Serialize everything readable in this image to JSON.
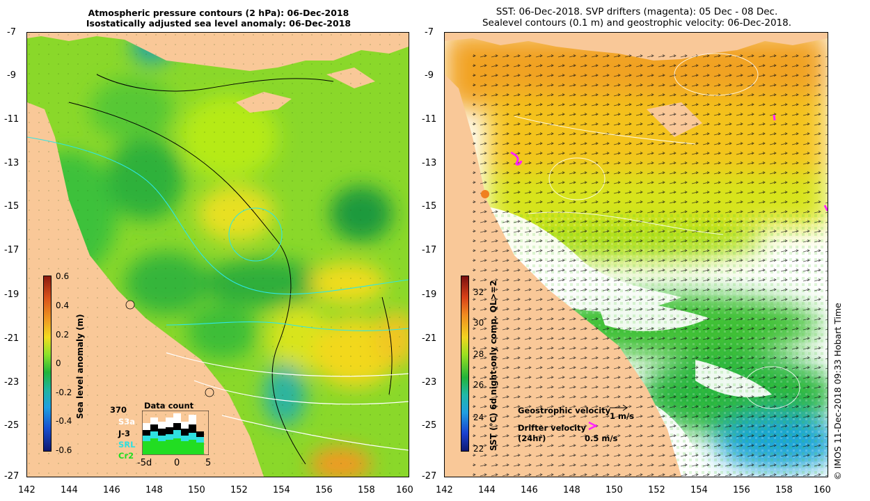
{
  "left_panel": {
    "title_line1": "Atmospheric pressure contours (2 hPa): 06-Dec-2018",
    "title_line2": "Isostatically adjusted sea level anomaly: 06-Dec-2018",
    "colorbar_label": "Sea level anomaly (m)",
    "colorbar_ticks": [
      "0.6",
      "0.4",
      "0.2",
      "0",
      "-0.2",
      "-0.4",
      "-0.6"
    ],
    "data_count": {
      "title": "Data count",
      "max_value": "370",
      "legend": [
        {
          "name": "S3a",
          "color": "#ffffff"
        },
        {
          "name": "J-3",
          "color": "#000000"
        },
        {
          "name": "SRL",
          "color": "#2fe0e0"
        },
        {
          "name": "Cr2",
          "color": "#22dd22"
        }
      ],
      "x_labels": [
        "-5d",
        "0",
        "5"
      ]
    }
  },
  "right_panel": {
    "title_line1": "SST: 06-Dec-2018. SVP drifters (magenta): 05 Dec - 08 Dec.",
    "title_line2": "Sealevel contours (0.1 m) and geostrophic velocity: 06-Dec-2018.",
    "colorbar_label": "SST (°C) 6d night-only comp. QL>=2",
    "colorbar_ticks": [
      "32",
      "30",
      "28",
      "26",
      "24",
      "22"
    ],
    "geostrophic_velocity_label": "Geostrophic velocity",
    "geostrophic_velocity_scale": "1 m/s",
    "drifter_velocity_label": "Drifter velocity",
    "drifter_velocity_sub": "(24hr)",
    "drifter_velocity_scale": "0.5 m/s",
    "side_credit": "© IMOS 11-Dec-2018 09:33 Hobart Time"
  },
  "axes": {
    "y_ticks": [
      "-7",
      "-9",
      "-11",
      "-13",
      "-15",
      "-17",
      "-19",
      "-21",
      "-23",
      "-25",
      "-27"
    ],
    "x_ticks": [
      "142",
      "144",
      "146",
      "148",
      "150",
      "152",
      "154",
      "156",
      "158",
      "160"
    ]
  },
  "colors": {
    "land": "#f9c898",
    "sla_mid": "#9ee41c",
    "sla_low": "#2ebd3a",
    "sst_warm": "#f2a020",
    "sst_mid": "#f6d01e"
  }
}
